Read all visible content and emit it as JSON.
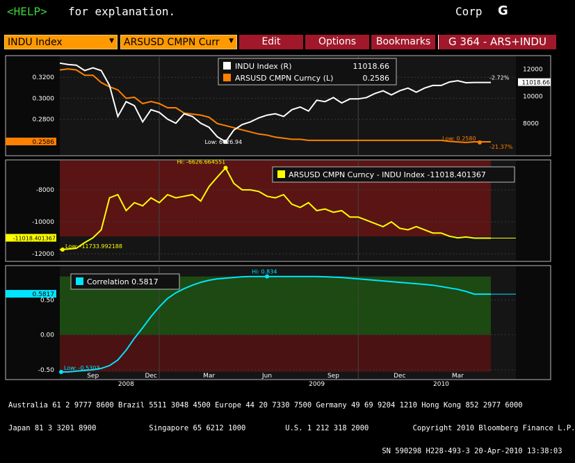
{
  "help_bar": {
    "key": "<HELP>",
    "text": "for explanation.",
    "corp": "Corp",
    "logo": "G"
  },
  "toolbar": {
    "security1": "INDU Index",
    "security2": "ARSUSD CMPN Curr",
    "edit": "Edit",
    "options": "Options",
    "bookmarks": "Bookmarks",
    "title": "G 364 - ARS+INDU"
  },
  "colors": {
    "indu": "#ffffff",
    "ars": "#ff8000",
    "spread": "#ffff00",
    "corr": "#00e5ff",
    "amber": "#ff9900",
    "button_red": "#a0182a"
  },
  "chart_data": [
    {
      "type": "line",
      "panel": "price",
      "x_ticks": [
        "Sep",
        "Dec",
        "Mar",
        "Jun",
        "Sep",
        "Dec",
        "Mar"
      ],
      "year_labels": [
        "2008",
        "2009",
        "2010"
      ],
      "left_axis": {
        "ticks": [
          "0.3200",
          "0.3000",
          "0.2800"
        ],
        "current_label": "0.2586",
        "range": [
          0.248,
          0.338
        ]
      },
      "right_axis": {
        "ticks": [
          "12000",
          "10000",
          "8000"
        ],
        "current_label": "11018.66",
        "range": [
          5800,
          12800
        ]
      },
      "series": [
        {
          "name": "INDU Index (R)",
          "value_label": "11018.66",
          "axis": "right",
          "change": "-2.72%",
          "low_label": "Low: 6626.94",
          "values": [
            12450,
            12350,
            12300,
            11900,
            12100,
            11900,
            10800,
            8500,
            9600,
            9300,
            8100,
            9000,
            8800,
            8300,
            8000,
            8700,
            8500,
            8000,
            7700,
            7000,
            6626.94,
            7500,
            7900,
            8100,
            8400,
            8600,
            8700,
            8500,
            9000,
            9200,
            8900,
            9700,
            9600,
            9900,
            9500,
            9800,
            9800,
            9900,
            10200,
            10400,
            10100,
            10400,
            10600,
            10300,
            10600,
            10800,
            10800,
            11050,
            11150,
            11000,
            11018.66,
            11018.66,
            11018.66
          ]
        },
        {
          "name": "ARSUSD CMPN Curncy (L)",
          "value_label": "0.2586",
          "axis": "left",
          "change": "-21.37%",
          "low_label": "Low: 0.2580",
          "values": [
            0.327,
            0.328,
            0.327,
            0.322,
            0.322,
            0.315,
            0.311,
            0.308,
            0.3,
            0.301,
            0.295,
            0.297,
            0.295,
            0.291,
            0.291,
            0.286,
            0.285,
            0.284,
            0.282,
            0.276,
            0.274,
            0.272,
            0.27,
            0.268,
            0.266,
            0.265,
            0.263,
            0.262,
            0.261,
            0.261,
            0.26,
            0.26,
            0.26,
            0.26,
            0.26,
            0.26,
            0.26,
            0.26,
            0.26,
            0.26,
            0.26,
            0.26,
            0.26,
            0.26,
            0.26,
            0.26,
            0.26,
            0.259,
            0.2585,
            0.258,
            0.2586,
            0.2586,
            0.2586
          ]
        }
      ]
    },
    {
      "type": "line",
      "panel": "spread",
      "left_axis": {
        "ticks": [
          "-8000",
          "-10000",
          "-12000"
        ],
        "current_label": "-11018.401367",
        "range": [
          -12300,
          -6300
        ]
      },
      "series": [
        {
          "name": "ARSUSD CMPN Curncy - INDU Index",
          "value_label": "-11018.401367",
          "hi_label": "Hi: -6626.664551",
          "low_label": "Low: -11733.992188",
          "values": [
            -11733.99,
            -11700,
            -11650,
            -11300,
            -11000,
            -10500,
            -8500,
            -8300,
            -9300,
            -8800,
            -9000,
            -8500,
            -8800,
            -8300,
            -8500,
            -8400,
            -8300,
            -8700,
            -7800,
            -7200,
            -6626.66,
            -7600,
            -8000,
            -8000,
            -8100,
            -8400,
            -8500,
            -8300,
            -8900,
            -9100,
            -8800,
            -9300,
            -9200,
            -9400,
            -9300,
            -9700,
            -9700,
            -9900,
            -10100,
            -10300,
            -10000,
            -10400,
            -10500,
            -10300,
            -10500,
            -10700,
            -10700,
            -10900,
            -11000,
            -10950,
            -11018.4,
            -11018.4,
            -11018.4
          ]
        }
      ]
    },
    {
      "type": "line",
      "panel": "correlation",
      "left_axis": {
        "ticks": [
          "0.50",
          "0.00",
          "-0.50"
        ],
        "current_label": "0.5817",
        "range": [
          -0.6,
          0.95
        ]
      },
      "series": [
        {
          "name": "Correlation",
          "value_label": "0.5817",
          "hi_label": "Hi: 0.834",
          "low_label": "Low: -0.5303",
          "values": [
            -0.5303,
            -0.53,
            -0.52,
            -0.51,
            -0.5,
            -0.48,
            -0.44,
            -0.36,
            -0.22,
            -0.05,
            0.1,
            0.26,
            0.4,
            0.52,
            0.6,
            0.66,
            0.71,
            0.75,
            0.78,
            0.8,
            0.81,
            0.82,
            0.83,
            0.834,
            0.834,
            0.834,
            0.834,
            0.834,
            0.834,
            0.834,
            0.834,
            0.833,
            0.83,
            0.825,
            0.82,
            0.81,
            0.8,
            0.79,
            0.78,
            0.77,
            0.76,
            0.75,
            0.74,
            0.73,
            0.72,
            0.71,
            0.69,
            0.67,
            0.65,
            0.62,
            0.5817,
            0.5817,
            0.5817
          ]
        }
      ]
    }
  ],
  "footer": {
    "line1": "Australia 61 2 9777 8600 Brazil 5511 3048 4500 Europe 44 20 7330 7500 Germany 49 69 9204 1210 Hong Kong 852 2977 6000",
    "line2": "Japan 81 3 3201 8900            Singapore 65 6212 1000         U.S. 1 212 318 2000          Copyright 2010 Bloomberg Finance L.P.",
    "line3": "                                                                                     SN 590298 H228-493-3 20-Apr-2010 13:38:03"
  }
}
